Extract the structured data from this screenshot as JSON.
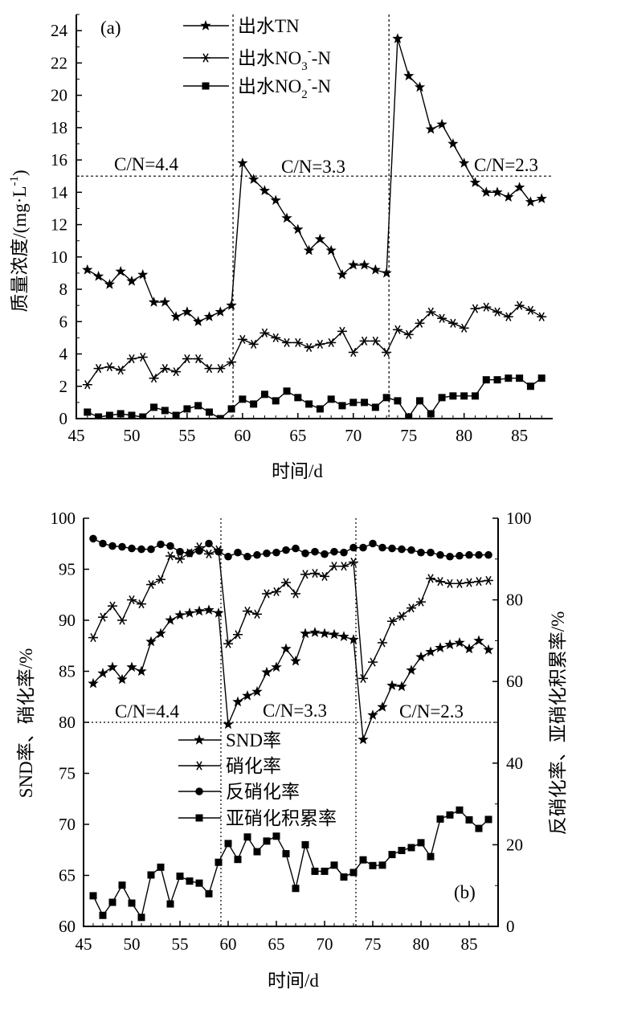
{
  "chart_data": [
    {
      "type": "line",
      "panel_label": "(a)",
      "xlabel": "时间/d",
      "ylabel": "质量浓度/(mg·L⁻¹)",
      "xlim": [
        45,
        88
      ],
      "ylim": [
        0,
        25
      ],
      "xticks": [
        "45",
        "50",
        "55",
        "60",
        "65",
        "70",
        "75",
        "80",
        "85"
      ],
      "yticks": [
        "0",
        "2",
        "4",
        "6",
        "8",
        "10",
        "12",
        "14",
        "16",
        "18",
        "20",
        "22",
        "24"
      ],
      "legend_placement": "top-center",
      "phase_dividers": [
        59,
        73
      ],
      "threshold_line": 15,
      "annotations": [
        "C/N=4.4",
        "C/N=3.3",
        "C/N=2.3"
      ],
      "series": [
        {
          "name": "出水TN",
          "marker": "star",
          "x": [
            46,
            47,
            48,
            49,
            50,
            51,
            52,
            53,
            54,
            55,
            56,
            57,
            58,
            59,
            60,
            61,
            62,
            63,
            64,
            65,
            66,
            67,
            68,
            69,
            70,
            71,
            72,
            73,
            74,
            75,
            76,
            77,
            78,
            79,
            80,
            81,
            82,
            83,
            84,
            85,
            86,
            87
          ],
          "y": [
            9.2,
            8.8,
            8.3,
            9.1,
            8.5,
            8.9,
            7.2,
            7.2,
            6.3,
            6.6,
            6.0,
            6.3,
            6.6,
            7.0,
            15.8,
            14.8,
            14.1,
            13.5,
            12.4,
            11.7,
            10.4,
            11.1,
            10.4,
            8.9,
            9.5,
            9.5,
            9.2,
            9.0,
            23.5,
            21.2,
            20.5,
            17.9,
            18.2,
            17.0,
            15.8,
            14.6,
            14.0,
            14.0,
            13.7,
            14.3,
            13.4,
            13.6
          ]
        },
        {
          "name": "出水NO₃⁻-N",
          "name_main": "出水NO",
          "name_sub": "3",
          "name_sup": "-",
          "name_tail": "-N",
          "marker": "asterisk",
          "x": [
            46,
            47,
            48,
            49,
            50,
            51,
            52,
            53,
            54,
            55,
            56,
            57,
            58,
            59,
            60,
            61,
            62,
            63,
            64,
            65,
            66,
            67,
            68,
            69,
            70,
            71,
            72,
            73,
            74,
            75,
            76,
            77,
            78,
            79,
            80,
            81,
            82,
            83,
            84,
            85,
            86,
            87
          ],
          "y": [
            2.1,
            3.1,
            3.2,
            3.0,
            3.7,
            3.8,
            2.5,
            3.1,
            2.9,
            3.7,
            3.7,
            3.1,
            3.1,
            3.5,
            4.9,
            4.6,
            5.3,
            5.0,
            4.7,
            4.7,
            4.4,
            4.6,
            4.7,
            5.4,
            4.1,
            4.8,
            4.8,
            4.1,
            5.5,
            5.2,
            5.9,
            6.6,
            6.2,
            5.9,
            5.6,
            6.8,
            6.9,
            6.6,
            6.3,
            7.0,
            6.7,
            6.3
          ]
        },
        {
          "name": "出水NO₂⁻-N",
          "name_main": "出水NO",
          "name_sub": "2",
          "name_sup": "-",
          "name_tail": "-N",
          "marker": "square",
          "x": [
            46,
            47,
            48,
            49,
            50,
            51,
            52,
            53,
            54,
            55,
            56,
            57,
            58,
            59,
            60,
            61,
            62,
            63,
            64,
            65,
            66,
            67,
            68,
            69,
            70,
            71,
            72,
            73,
            74,
            75,
            76,
            77,
            78,
            79,
            80,
            81,
            82,
            83,
            84,
            85,
            86,
            87
          ],
          "y": [
            0.4,
            0.1,
            0.2,
            0.3,
            0.2,
            0.1,
            0.7,
            0.5,
            0.2,
            0.6,
            0.8,
            0.4,
            0.0,
            0.6,
            1.2,
            0.9,
            1.5,
            1.1,
            1.7,
            1.3,
            0.9,
            0.6,
            1.2,
            0.8,
            1.0,
            1.0,
            0.7,
            1.3,
            1.1,
            0.1,
            1.1,
            0.3,
            1.3,
            1.4,
            1.4,
            1.4,
            2.4,
            2.4,
            2.5,
            2.5,
            2.0,
            2.5
          ]
        }
      ]
    },
    {
      "type": "line",
      "panel_label": "(b)",
      "xlabel": "时间/d",
      "ylabel": "SND率、硝化率/%",
      "y2label": "反硝化率、亚硝化积累率/%",
      "xlim": [
        45,
        88
      ],
      "ylim": [
        60,
        100
      ],
      "y2lim": [
        0,
        100
      ],
      "xticks": [
        "45",
        "50",
        "55",
        "60",
        "65",
        "70",
        "75",
        "80",
        "85"
      ],
      "yticks": [
        "60",
        "65",
        "70",
        "75",
        "80",
        "85",
        "90",
        "95",
        "100"
      ],
      "y2ticks": [
        "0",
        "20",
        "40",
        "60",
        "80",
        "100"
      ],
      "legend_placement": "center-left",
      "phase_dividers": [
        59,
        73
      ],
      "threshold_line": 80,
      "annotations": [
        "C/N=4.4",
        "C/N=3.3",
        "C/N=2.3"
      ],
      "series": [
        {
          "name": "SND率",
          "marker": "star",
          "axis": "left",
          "x": [
            46,
            47,
            48,
            49,
            50,
            51,
            52,
            53,
            54,
            55,
            56,
            57,
            58,
            59,
            60,
            61,
            62,
            63,
            64,
            65,
            66,
            67,
            68,
            69,
            70,
            71,
            72,
            73,
            74,
            75,
            76,
            77,
            78,
            79,
            80,
            81,
            82,
            83,
            84,
            85,
            86,
            87
          ],
          "y": [
            83.8,
            84.8,
            85.4,
            84.2,
            85.4,
            85.0,
            87.9,
            88.7,
            90.0,
            90.5,
            90.7,
            90.9,
            91.0,
            90.7,
            79.8,
            82.0,
            82.6,
            83.0,
            84.9,
            85.4,
            87.2,
            86.0,
            88.7,
            88.8,
            88.7,
            88.6,
            88.4,
            88.1,
            78.3,
            80.7,
            81.5,
            83.6,
            83.5,
            85.1,
            86.4,
            86.9,
            87.3,
            87.6,
            87.8,
            87.2,
            88.0,
            87.1
          ]
        },
        {
          "name": "硝化率",
          "marker": "asterisk",
          "axis": "left",
          "x": [
            46,
            47,
            48,
            49,
            50,
            51,
            52,
            53,
            54,
            55,
            56,
            57,
            58,
            59,
            60,
            61,
            62,
            63,
            64,
            65,
            66,
            67,
            68,
            69,
            70,
            71,
            72,
            73,
            74,
            75,
            76,
            77,
            78,
            79,
            80,
            81,
            82,
            83,
            84,
            85,
            86,
            87
          ],
          "y": [
            88.3,
            90.3,
            91.4,
            90.0,
            92.0,
            91.6,
            93.5,
            94.0,
            96.3,
            96.0,
            96.6,
            97.2,
            96.5,
            96.9,
            87.7,
            88.6,
            90.9,
            90.6,
            92.6,
            92.8,
            93.7,
            92.6,
            94.5,
            94.6,
            94.3,
            95.3,
            95.3,
            95.7,
            84.3,
            85.9,
            87.8,
            89.9,
            90.4,
            91.2,
            91.8,
            94.1,
            93.8,
            93.6,
            93.6,
            93.7,
            93.8,
            93.9
          ]
        },
        {
          "name": "反硝化率",
          "marker": "circle",
          "axis": "right",
          "x": [
            46,
            47,
            48,
            49,
            50,
            51,
            52,
            53,
            54,
            55,
            56,
            57,
            58,
            59,
            60,
            61,
            62,
            63,
            64,
            65,
            66,
            67,
            68,
            69,
            70,
            71,
            72,
            73,
            74,
            75,
            76,
            77,
            78,
            79,
            80,
            81,
            82,
            83,
            84,
            85,
            86,
            87
          ],
          "y": [
            95.0,
            93.8,
            93.2,
            93.0,
            92.6,
            92.4,
            92.4,
            93.6,
            93.2,
            91.8,
            91.4,
            92.0,
            93.8,
            91.8,
            90.6,
            91.6,
            90.6,
            91.0,
            91.4,
            91.6,
            92.2,
            92.6,
            91.4,
            91.8,
            91.2,
            91.8,
            91.6,
            92.8,
            92.8,
            93.8,
            92.8,
            92.6,
            92.4,
            92.2,
            91.6,
            91.6,
            91.0,
            90.6,
            90.8,
            91.0,
            91.0,
            91.0
          ]
        },
        {
          "name": "亚硝化积累率",
          "marker": "square",
          "axis": "right",
          "x": [
            46,
            47,
            48,
            49,
            50,
            51,
            52,
            53,
            54,
            55,
            56,
            57,
            58,
            59,
            60,
            61,
            62,
            63,
            64,
            65,
            66,
            67,
            68,
            69,
            70,
            71,
            72,
            73,
            74,
            75,
            76,
            77,
            78,
            79,
            80,
            81,
            82,
            83,
            84,
            85,
            86,
            87
          ],
          "y": [
            7.5,
            2.7,
            5.9,
            10.1,
            5.7,
            2.2,
            12.6,
            14.5,
            5.5,
            12.3,
            11.1,
            10.6,
            8.0,
            15.7,
            20.3,
            16.4,
            21.9,
            18.3,
            20.9,
            22.1,
            17.8,
            9.3,
            20.0,
            13.5,
            13.5,
            15.0,
            12.1,
            13.2,
            16.3,
            14.9,
            15.0,
            17.6,
            18.6,
            19.3,
            20.5,
            17.1,
            26.3,
            27.3,
            28.5,
            26.1,
            24.0,
            26.2
          ]
        }
      ]
    }
  ]
}
